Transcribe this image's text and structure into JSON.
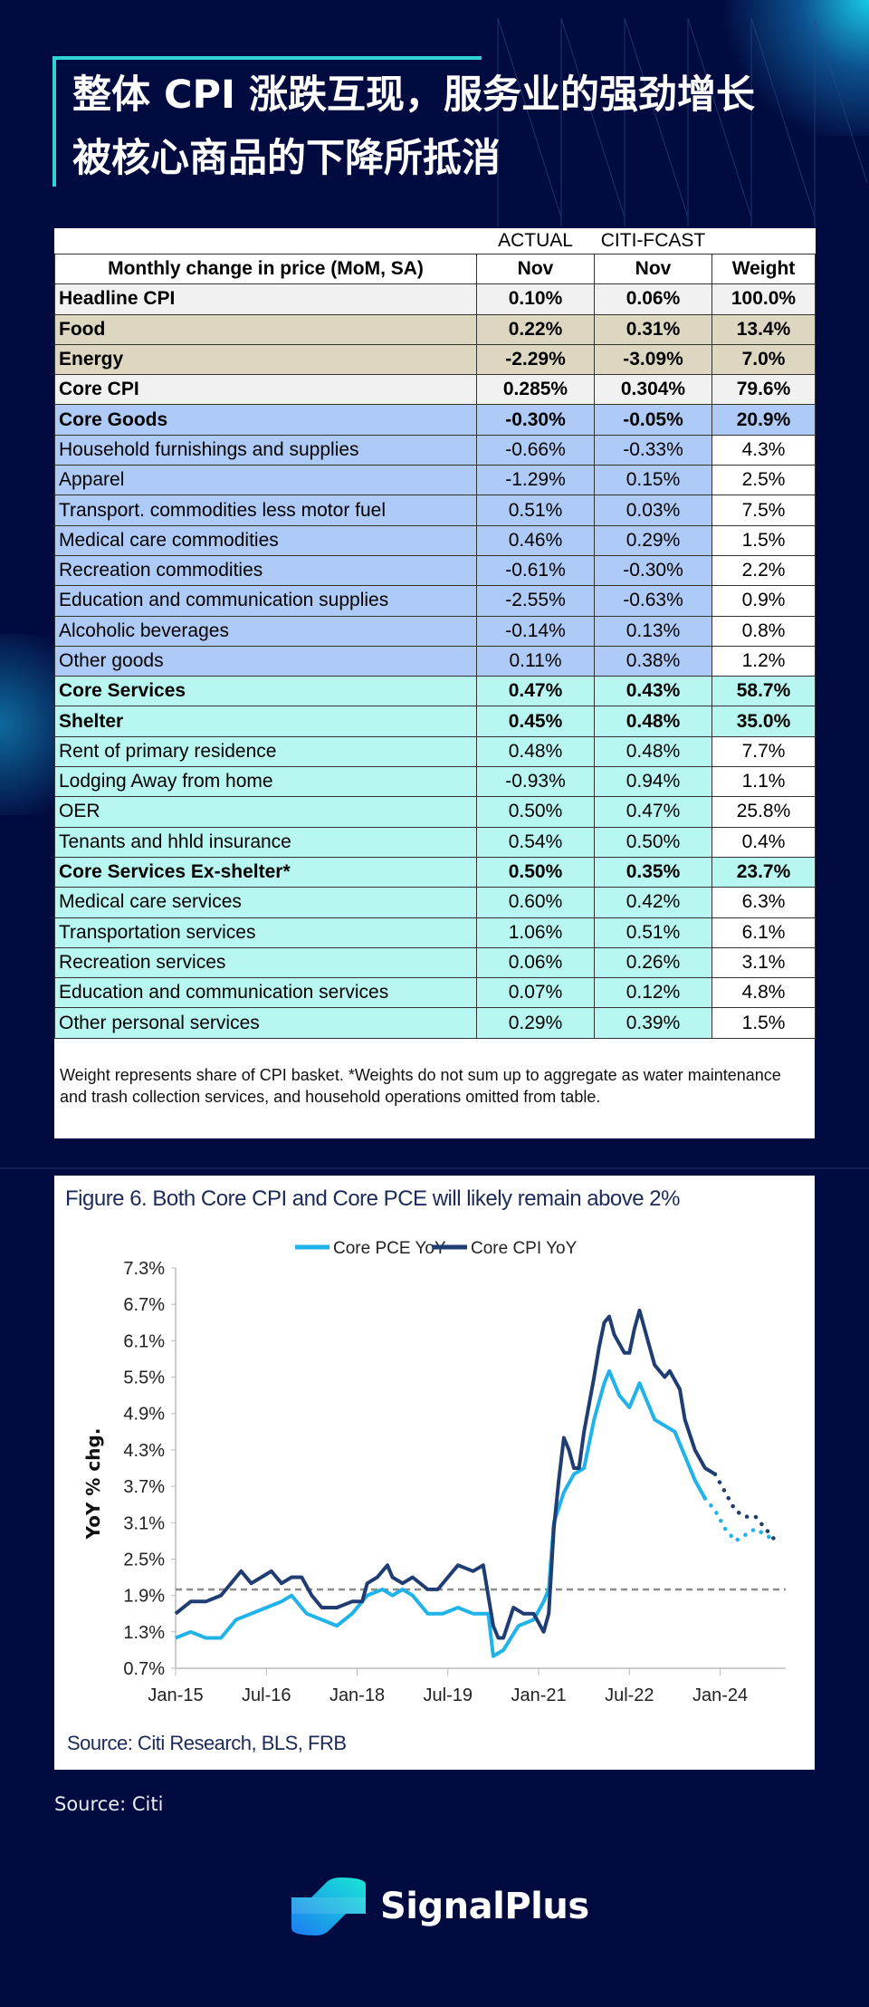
{
  "title": {
    "line1": "整体 CPI 涨跌互现，服务业的强劲增长",
    "line2": "被核心商品的下降所抵消"
  },
  "table": {
    "group_headers": [
      "ACTUAL",
      "CITI-FCAST"
    ],
    "headers": [
      "Monthly change in price (MoM, SA)",
      "Nov",
      "Nov",
      "Weight"
    ],
    "rows": [
      {
        "label": "Headline CPI",
        "actual": "0.10%",
        "fcast": "0.06%",
        "weight": "100.0%",
        "style": "white bold"
      },
      {
        "label": "Food",
        "actual": "0.22%",
        "fcast": "0.31%",
        "weight": "13.4%",
        "style": "tan bold"
      },
      {
        "label": "Energy",
        "actual": "-2.29%",
        "fcast": "-3.09%",
        "weight": "7.0%",
        "style": "tan bold"
      },
      {
        "label": "Core CPI",
        "actual": "0.285%",
        "fcast": "0.304%",
        "weight": "79.6%",
        "style": "white bold"
      },
      {
        "label": "Core Goods",
        "actual": "-0.30%",
        "fcast": "-0.05%",
        "weight": "20.9%",
        "style": "blue bold"
      },
      {
        "label": "Household furnishings and supplies",
        "actual": "-0.66%",
        "fcast": "-0.33%",
        "weight": "4.3%",
        "style": "blue sub"
      },
      {
        "label": "Apparel",
        "actual": "-1.29%",
        "fcast": "0.15%",
        "weight": "2.5%",
        "style": "blue sub"
      },
      {
        "label": "Transport. commodities less motor fuel",
        "actual": "0.51%",
        "fcast": "0.03%",
        "weight": "7.5%",
        "style": "blue sub"
      },
      {
        "label": "Medical care commodities",
        "actual": "0.46%",
        "fcast": "0.29%",
        "weight": "1.5%",
        "style": "blue sub"
      },
      {
        "label": "Recreation commodities",
        "actual": "-0.61%",
        "fcast": "-0.30%",
        "weight": "2.2%",
        "style": "blue sub"
      },
      {
        "label": "Education and communication supplies",
        "actual": "-2.55%",
        "fcast": "-0.63%",
        "weight": "0.9%",
        "style": "blue sub"
      },
      {
        "label": "Alcoholic beverages",
        "actual": "-0.14%",
        "fcast": "0.13%",
        "weight": "0.8%",
        "style": "blue sub"
      },
      {
        "label": "Other goods",
        "actual": "0.11%",
        "fcast": "0.38%",
        "weight": "1.2%",
        "style": "blue sub"
      },
      {
        "label": "Core Services",
        "actual": "0.47%",
        "fcast": "0.43%",
        "weight": "58.7%",
        "style": "cyan bold"
      },
      {
        "label": "Shelter",
        "actual": "0.45%",
        "fcast": "0.48%",
        "weight": "35.0%",
        "style": "cyan bold"
      },
      {
        "label": "Rent of primary residence",
        "actual": "0.48%",
        "fcast": "0.48%",
        "weight": "7.7%",
        "style": "cyan sub"
      },
      {
        "label": "Lodging Away from home",
        "actual": "-0.93%",
        "fcast": "0.94%",
        "weight": "1.1%",
        "style": "cyan sub"
      },
      {
        "label": "OER",
        "actual": "0.50%",
        "fcast": "0.47%",
        "weight": "25.8%",
        "style": "cyan sub"
      },
      {
        "label": "Tenants and hhld insurance",
        "actual": "0.54%",
        "fcast": "0.50%",
        "weight": "0.4%",
        "style": "cyan sub"
      },
      {
        "label": "Core Services Ex-shelter*",
        "actual": "0.50%",
        "fcast": "0.35%",
        "weight": "23.7%",
        "style": "cyan bold"
      },
      {
        "label": "Medical care services",
        "actual": "0.60%",
        "fcast": "0.42%",
        "weight": "6.3%",
        "style": "cyan sub"
      },
      {
        "label": "Transportation services",
        "actual": "1.06%",
        "fcast": "0.51%",
        "weight": "6.1%",
        "style": "cyan sub"
      },
      {
        "label": "Recreation services",
        "actual": "0.06%",
        "fcast": "0.26%",
        "weight": "3.1%",
        "style": "cyan sub"
      },
      {
        "label": "Education and communication services",
        "actual": "0.07%",
        "fcast": "0.12%",
        "weight": "4.8%",
        "style": "cyan sub"
      },
      {
        "label": "Other personal services",
        "actual": "0.29%",
        "fcast": "0.39%",
        "weight": "1.5%",
        "style": "cyan sub"
      }
    ],
    "note": "Weight represents share of CPI basket. *Weights do not sum up to aggregate as water maintenance and trash collection services, and household operations omitted from table."
  },
  "chart_data": {
    "type": "line",
    "title": "Figure 6. Both Core CPI and Core PCE will likely remain above 2%",
    "ylabel": "YoY % chg.",
    "xlabel": "",
    "source": "Source: Citi Research, BLS, FRB",
    "x_ticks": [
      "Jan-15",
      "Jul-16",
      "Jan-18",
      "Jul-19",
      "Jan-21",
      "Jul-22",
      "Jan-24"
    ],
    "x_tick_dates": [
      "2015-01",
      "2016-07",
      "2018-01",
      "2019-07",
      "2021-01",
      "2022-07",
      "2024-01"
    ],
    "xlim": [
      "2015-01",
      "2025-02"
    ],
    "y_ticks": [
      "0.7%",
      "1.3%",
      "1.9%",
      "2.5%",
      "3.1%",
      "3.7%",
      "4.3%",
      "4.9%",
      "5.5%",
      "6.1%",
      "6.7%",
      "7.3%"
    ],
    "ylim": [
      0.7,
      7.3
    ],
    "reference_line": {
      "y": 2.0,
      "style": "dashed",
      "color": "#8c8c8c"
    },
    "legend": "top-center",
    "grid": false,
    "series": [
      {
        "name": "Core PCE YoY",
        "color": "#1fb3ea",
        "actual": [
          [
            "2015-01",
            1.2
          ],
          [
            "2015-04",
            1.3
          ],
          [
            "2015-07",
            1.2
          ],
          [
            "2015-10",
            1.2
          ],
          [
            "2016-01",
            1.5
          ],
          [
            "2016-04",
            1.6
          ],
          [
            "2016-07",
            1.7
          ],
          [
            "2016-10",
            1.8
          ],
          [
            "2016-12",
            1.9
          ],
          [
            "2017-03",
            1.6
          ],
          [
            "2017-06",
            1.5
          ],
          [
            "2017-09",
            1.4
          ],
          [
            "2017-12",
            1.6
          ],
          [
            "2018-03",
            1.9
          ],
          [
            "2018-06",
            2.0
          ],
          [
            "2018-08",
            1.9
          ],
          [
            "2018-10",
            2.0
          ],
          [
            "2018-12",
            1.9
          ],
          [
            "2019-03",
            1.6
          ],
          [
            "2019-06",
            1.6
          ],
          [
            "2019-09",
            1.7
          ],
          [
            "2019-12",
            1.6
          ],
          [
            "2020-03",
            1.6
          ],
          [
            "2020-04",
            0.9
          ],
          [
            "2020-06",
            1.0
          ],
          [
            "2020-09",
            1.4
          ],
          [
            "2020-12",
            1.5
          ],
          [
            "2021-02",
            1.8
          ],
          [
            "2021-03",
            2.0
          ],
          [
            "2021-04",
            3.1
          ],
          [
            "2021-06",
            3.6
          ],
          [
            "2021-08",
            3.9
          ],
          [
            "2021-10",
            4.0
          ],
          [
            "2021-12",
            4.8
          ],
          [
            "2022-02",
            5.4
          ],
          [
            "2022-03",
            5.6
          ],
          [
            "2022-05",
            5.2
          ],
          [
            "2022-07",
            5.0
          ],
          [
            "2022-09",
            5.4
          ],
          [
            "2022-11",
            5.0
          ],
          [
            "2022-12",
            4.8
          ],
          [
            "2023-02",
            4.7
          ],
          [
            "2023-04",
            4.6
          ],
          [
            "2023-06",
            4.2
          ],
          [
            "2023-08",
            3.8
          ],
          [
            "2023-10",
            3.5
          ]
        ],
        "forecast": [
          [
            "2023-10",
            3.5
          ],
          [
            "2023-12",
            3.3
          ],
          [
            "2024-02",
            3.0
          ],
          [
            "2024-04",
            2.8
          ],
          [
            "2024-06",
            2.9
          ],
          [
            "2024-08",
            3.0
          ],
          [
            "2024-10",
            2.9
          ],
          [
            "2024-12",
            2.8
          ]
        ]
      },
      {
        "name": "Core CPI YoY",
        "color": "#1f3d73",
        "actual": [
          [
            "2015-01",
            1.6
          ],
          [
            "2015-04",
            1.8
          ],
          [
            "2015-07",
            1.8
          ],
          [
            "2015-10",
            1.9
          ],
          [
            "2016-01",
            2.2
          ],
          [
            "2016-02",
            2.3
          ],
          [
            "2016-04",
            2.1
          ],
          [
            "2016-06",
            2.2
          ],
          [
            "2016-08",
            2.3
          ],
          [
            "2016-10",
            2.1
          ],
          [
            "2016-12",
            2.2
          ],
          [
            "2017-02",
            2.2
          ],
          [
            "2017-04",
            1.9
          ],
          [
            "2017-06",
            1.7
          ],
          [
            "2017-09",
            1.7
          ],
          [
            "2017-12",
            1.8
          ],
          [
            "2018-02",
            1.8
          ],
          [
            "2018-03",
            2.1
          ],
          [
            "2018-05",
            2.2
          ],
          [
            "2018-07",
            2.4
          ],
          [
            "2018-08",
            2.2
          ],
          [
            "2018-10",
            2.1
          ],
          [
            "2018-12",
            2.2
          ],
          [
            "2019-03",
            2.0
          ],
          [
            "2019-05",
            2.0
          ],
          [
            "2019-07",
            2.2
          ],
          [
            "2019-09",
            2.4
          ],
          [
            "2019-12",
            2.3
          ],
          [
            "2020-02",
            2.4
          ],
          [
            "2020-04",
            1.4
          ],
          [
            "2020-05",
            1.2
          ],
          [
            "2020-06",
            1.2
          ],
          [
            "2020-08",
            1.7
          ],
          [
            "2020-10",
            1.6
          ],
          [
            "2020-12",
            1.6
          ],
          [
            "2021-02",
            1.3
          ],
          [
            "2021-03",
            1.6
          ],
          [
            "2021-04",
            3.0
          ],
          [
            "2021-05",
            3.8
          ],
          [
            "2021-06",
            4.5
          ],
          [
            "2021-07",
            4.3
          ],
          [
            "2021-08",
            4.0
          ],
          [
            "2021-09",
            4.0
          ],
          [
            "2021-10",
            4.6
          ],
          [
            "2021-12",
            5.5
          ],
          [
            "2022-01",
            6.0
          ],
          [
            "2022-02",
            6.4
          ],
          [
            "2022-03",
            6.5
          ],
          [
            "2022-04",
            6.2
          ],
          [
            "2022-06",
            5.9
          ],
          [
            "2022-07",
            5.9
          ],
          [
            "2022-08",
            6.3
          ],
          [
            "2022-09",
            6.6
          ],
          [
            "2022-11",
            6.0
          ],
          [
            "2022-12",
            5.7
          ],
          [
            "2023-02",
            5.5
          ],
          [
            "2023-03",
            5.6
          ],
          [
            "2023-05",
            5.3
          ],
          [
            "2023-06",
            4.8
          ],
          [
            "2023-08",
            4.3
          ],
          [
            "2023-10",
            4.0
          ],
          [
            "2023-12",
            3.9
          ]
        ],
        "forecast": [
          [
            "2023-12",
            3.9
          ],
          [
            "2024-02",
            3.6
          ],
          [
            "2024-04",
            3.3
          ],
          [
            "2024-06",
            3.2
          ],
          [
            "2024-08",
            3.2
          ],
          [
            "2024-10",
            3.0
          ],
          [
            "2024-12",
            2.8
          ]
        ]
      }
    ]
  },
  "source": "Source: Citi",
  "logo": {
    "text": "SignalPlus"
  },
  "colors": {
    "background": "#020b3f",
    "accent": "#2fd3d6"
  }
}
